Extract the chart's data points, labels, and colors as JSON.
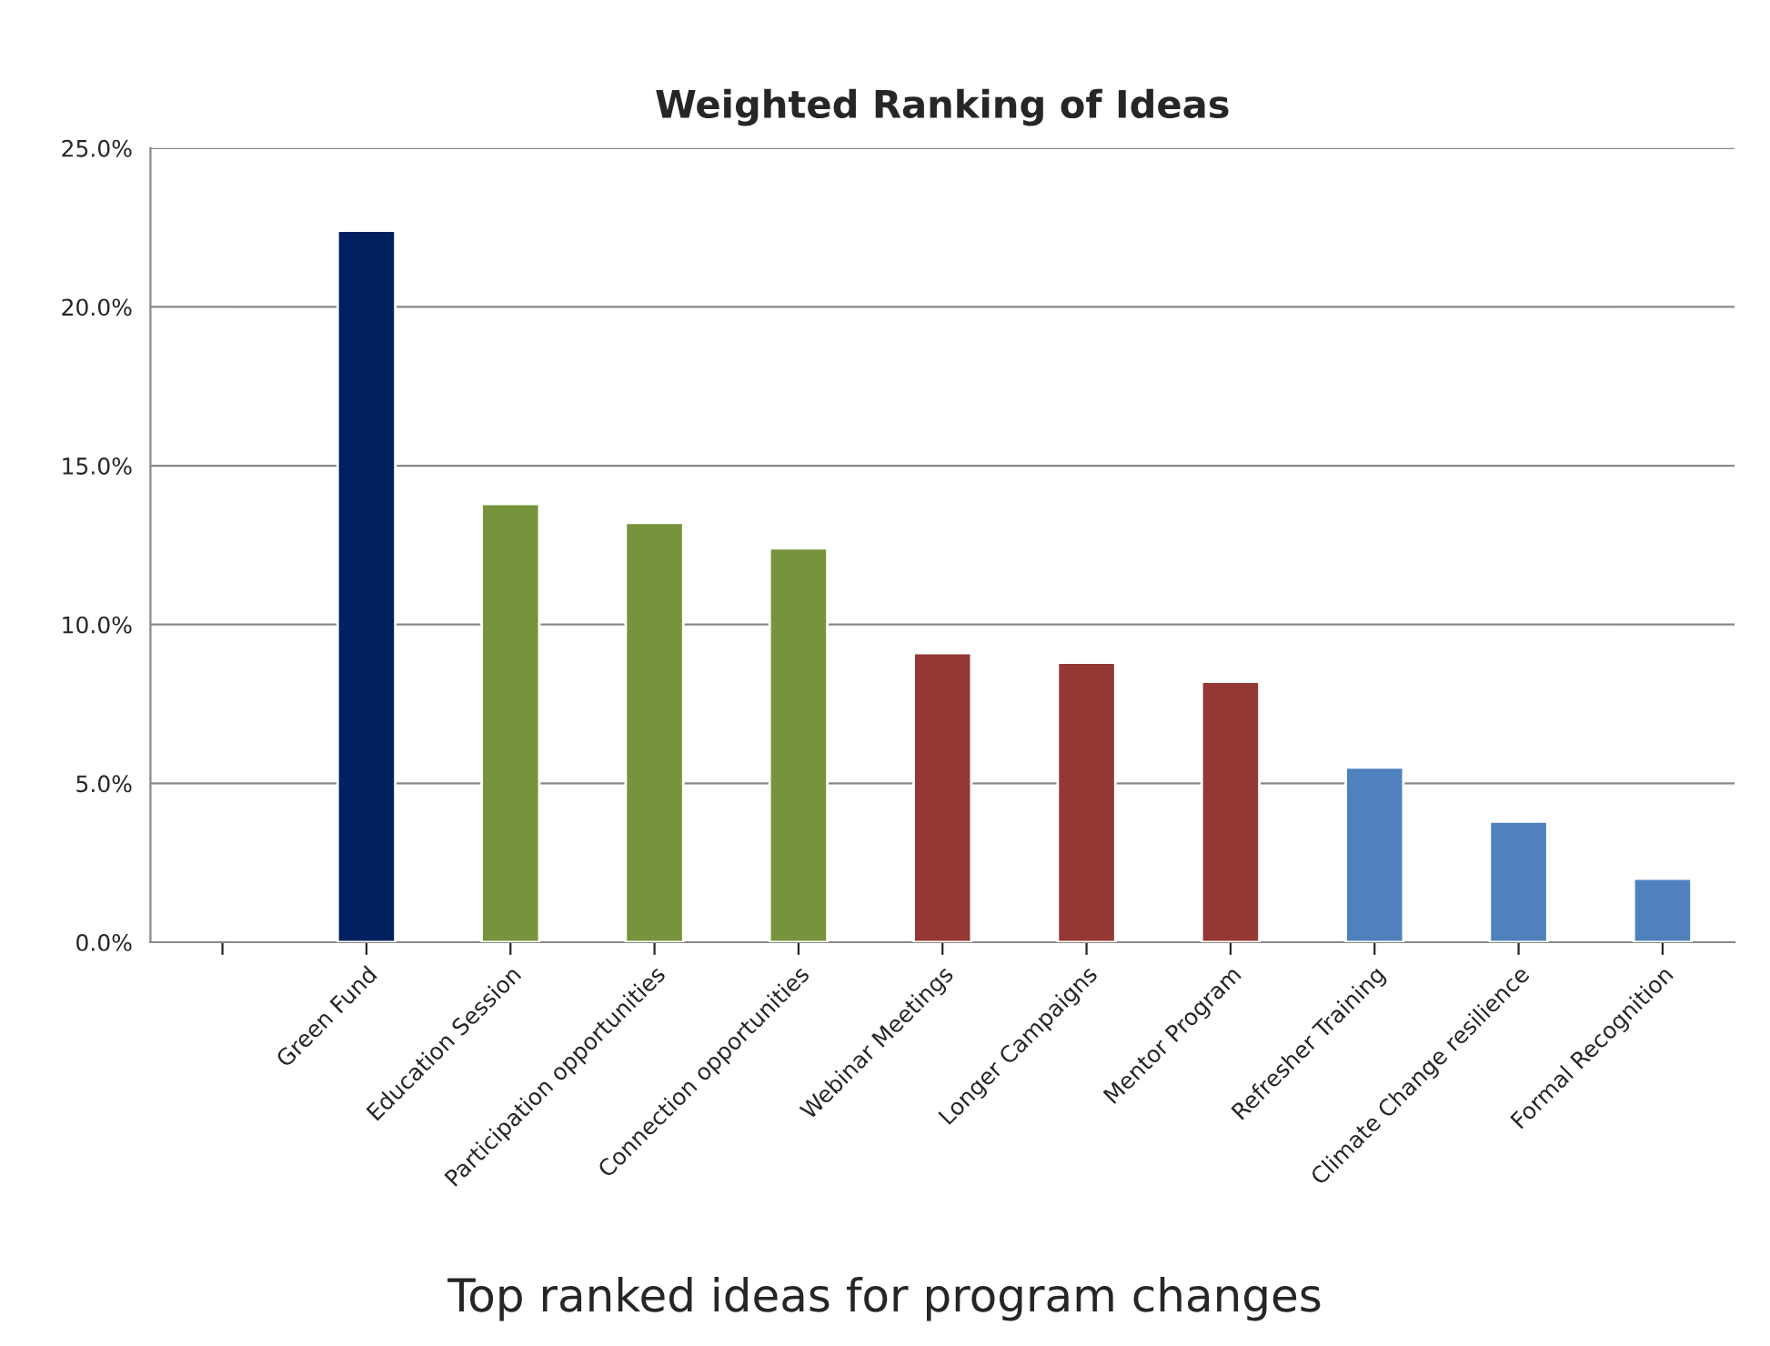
{
  "chart_data": {
    "type": "bar",
    "title": "Weighted Ranking of Ideas",
    "categories": [
      null,
      "Green Fund",
      "Education Session",
      "Participation opportunities",
      "Connection opportunities",
      "Webinar Meetings",
      "Longer Campaigns",
      "Mentor Program",
      "Refresher Training",
      "Climate Change resilience",
      "Formal Recognition"
    ],
    "values": [
      null,
      22.4,
      13.8,
      13.2,
      12.4,
      9.1,
      8.8,
      8.2,
      5.5,
      3.8,
      2.0
    ],
    "colors": [
      "#002060",
      "#002060",
      "#77933c",
      "#77933c",
      "#77933c",
      "#953735",
      "#953735",
      "#953735",
      "#4f81bd",
      "#4f81bd",
      "#4f81bd"
    ],
    "ylim": [
      0,
      25
    ],
    "yticks": [
      {
        "value": 0,
        "label": "0.0%"
      },
      {
        "value": 5,
        "label": "5.0%"
      },
      {
        "value": 10,
        "label": "10.0%"
      },
      {
        "value": 15,
        "label": "15.0%"
      },
      {
        "value": 20,
        "label": "20.0%"
      },
      {
        "value": 25,
        "label": "25.0%"
      }
    ],
    "grid": "y",
    "annotations": [
      "Top ranked ideas for program changes"
    ]
  }
}
